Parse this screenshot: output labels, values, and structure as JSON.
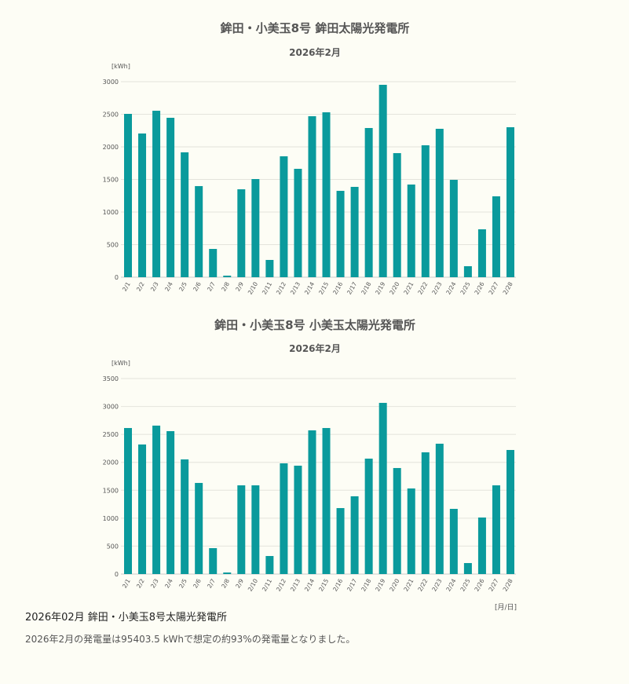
{
  "colors": {
    "bar": "#0a9a9c",
    "grid": "#e4e4dc",
    "text": "#555555"
  },
  "chart_data": [
    {
      "type": "bar",
      "title": "鉾田・小美玉8号 鉾田太陽光発電所",
      "subtitle": "2026年2月",
      "ylabel": "[kWh]",
      "xlabel": "",
      "ylim": [
        0,
        3000
      ],
      "yticks": [
        0,
        500,
        1000,
        1500,
        2000,
        2500,
        3000
      ],
      "grid": true,
      "categories": [
        "2/1",
        "2/2",
        "2/3",
        "2/4",
        "2/5",
        "2/6",
        "2/7",
        "2/8",
        "2/9",
        "2/10",
        "2/11",
        "2/12",
        "2/13",
        "2/14",
        "2/15",
        "2/16",
        "2/17",
        "2/18",
        "2/19",
        "2/20",
        "2/21",
        "2/22",
        "2/23",
        "2/24",
        "2/25",
        "2/26",
        "2/27",
        "2/28"
      ],
      "values": [
        2506,
        2205,
        2554,
        2446,
        1916,
        1398,
        434,
        24,
        1349,
        1506,
        265,
        1855,
        1663,
        2470,
        2530,
        1325,
        1386,
        2289,
        2952,
        1904,
        1422,
        2024,
        2277,
        1494,
        169,
        735,
        1241,
        2301
      ]
    },
    {
      "type": "bar",
      "title": "鉾田・小美玉8号 小美玉太陽光発電所",
      "subtitle": "2026年2月",
      "ylabel": "[kWh]",
      "xlabel": "[月/日]",
      "ylim": [
        0,
        3500
      ],
      "yticks": [
        0,
        500,
        1000,
        1500,
        2000,
        2500,
        3000,
        3500
      ],
      "grid": true,
      "categories": [
        "2/1",
        "2/2",
        "2/3",
        "2/4",
        "2/5",
        "2/6",
        "2/7",
        "2/8",
        "2/9",
        "2/10",
        "2/11",
        "2/12",
        "2/13",
        "2/14",
        "2/15",
        "2/16",
        "2/17",
        "2/18",
        "2/19",
        "2/20",
        "2/21",
        "2/22",
        "2/23",
        "2/24",
        "2/25",
        "2/26",
        "2/27",
        "2/28"
      ],
      "values": [
        2614,
        2319,
        2657,
        2558,
        2052,
        1631,
        464,
        28,
        1588,
        1588,
        323,
        1982,
        1940,
        2572,
        2614,
        1181,
        1392,
        2066,
        3064,
        1898,
        1532,
        2179,
        2333,
        1167,
        197,
        1012,
        1588,
        2221
      ]
    }
  ],
  "footer": {
    "title": "2026年02月  鉾田・小美玉8号太陽光発電所",
    "summary": "2026年2月の発電量は95403.5 kWhで想定の約93%の発電量となりました。"
  }
}
